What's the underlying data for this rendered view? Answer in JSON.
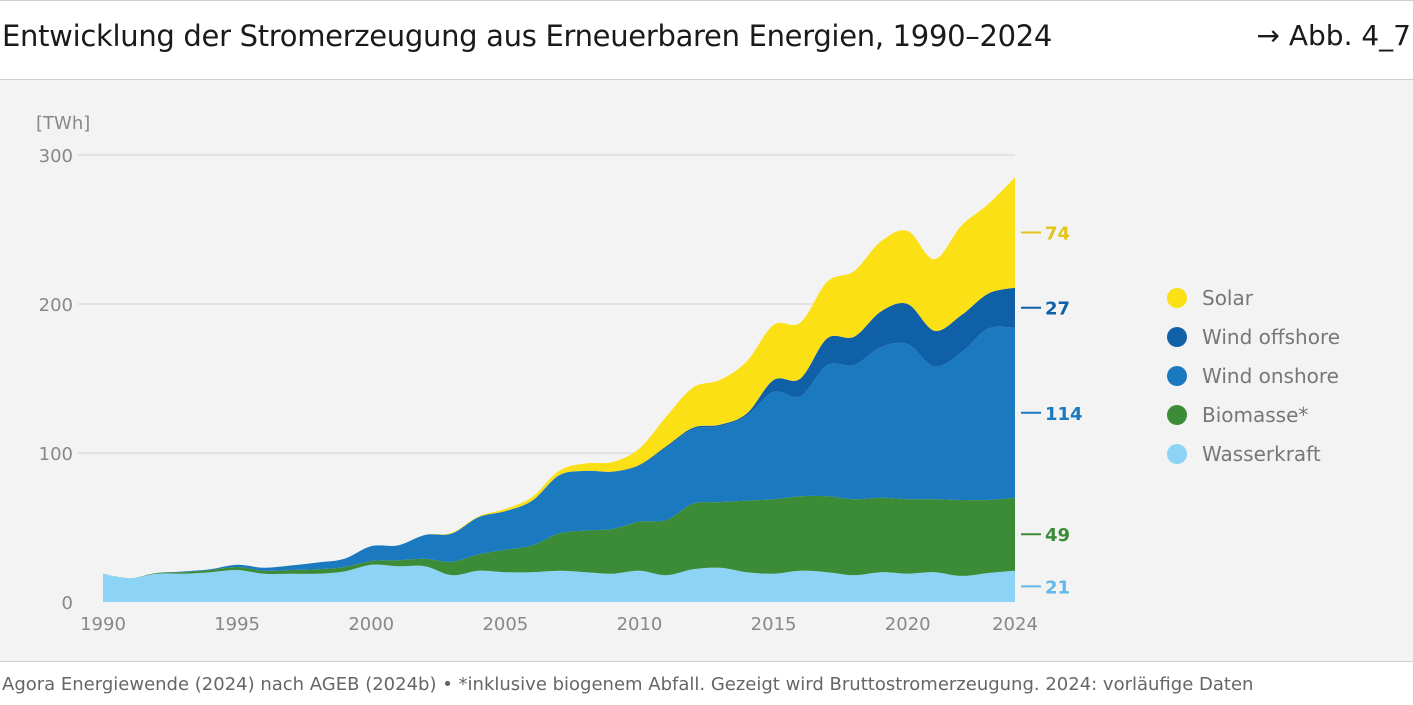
{
  "header": {
    "title": "Entwicklung der Stromerzeugung aus Erneuerbaren Energien, 1990–2024",
    "figure_ref": "→ Abb. 4_7"
  },
  "footer": {
    "source": "Agora Energiewende (2024) nach AGEB (2024b) • *inklusive biogenem Abfall. Gezeigt wird Bruttostromerzeugung. 2024: vorläufige Daten"
  },
  "chart_data": {
    "type": "area",
    "stacked": true,
    "unit_label": "[TWh]",
    "ylim": [
      0,
      300
    ],
    "yticks": [
      0,
      100,
      200,
      300
    ],
    "xlim": [
      1990,
      2024
    ],
    "xticks": [
      1990,
      1995,
      2000,
      2005,
      2010,
      2015,
      2020,
      2024
    ],
    "x": [
      1990,
      1991,
      1992,
      1993,
      1994,
      1995,
      1996,
      1997,
      1998,
      1999,
      2000,
      2001,
      2002,
      2003,
      2004,
      2005,
      2006,
      2007,
      2008,
      2009,
      2010,
      2011,
      2012,
      2013,
      2014,
      2015,
      2016,
      2017,
      2018,
      2019,
      2020,
      2021,
      2022,
      2023,
      2024
    ],
    "series": [
      {
        "name": "Wasserkraft",
        "color": "#8dd3f5",
        "end_label": "21",
        "values": [
          19,
          16,
          19,
          19,
          20,
          21.5,
          19,
          19,
          19,
          20.5,
          25,
          24,
          24,
          18,
          21,
          20,
          20,
          21,
          20,
          19,
          21,
          18,
          22,
          23,
          20,
          19,
          21,
          20,
          18,
          20,
          19,
          20,
          17.5,
          19.5,
          21
        ]
      },
      {
        "name": "Biomasse*",
        "color": "#3c8c37",
        "end_label": "49",
        "values": [
          0,
          0,
          0.5,
          1,
          1.5,
          2,
          2,
          2.5,
          3,
          3,
          2.5,
          4,
          5,
          9,
          11,
          15,
          18,
          25,
          28,
          30,
          33,
          37,
          44,
          44,
          48,
          50,
          50,
          51,
          51,
          50,
          50,
          49,
          51,
          49,
          49
        ]
      },
      {
        "name": "Wind onshore",
        "color": "#1b79c0",
        "end_label": "114",
        "values": [
          0,
          0,
          0,
          0.5,
          0.5,
          1.5,
          2,
          3,
          4.5,
          5.5,
          10,
          10,
          16,
          19,
          25,
          26,
          30,
          39,
          40,
          38.5,
          37.5,
          48.5,
          50,
          51,
          57,
          72,
          67,
          88,
          90,
          101,
          104,
          89,
          99,
          115,
          114
        ]
      },
      {
        "name": "Wind offshore",
        "color": "#1060a8",
        "end_label": "27",
        "values": [
          0,
          0,
          0,
          0,
          0,
          0,
          0,
          0,
          0,
          0,
          0,
          0,
          0,
          0,
          0,
          0,
          0,
          0,
          0,
          0,
          0.5,
          1,
          1,
          1,
          1.5,
          8,
          12,
          18,
          19,
          24,
          27,
          24,
          25,
          23.5,
          27
        ]
      },
      {
        "name": "Solar",
        "color": "#fbe016",
        "end_label": "74",
        "values": [
          0,
          0,
          0,
          0,
          0,
          0,
          0,
          0,
          0,
          0,
          0,
          0,
          0,
          0.5,
          0.5,
          1.5,
          2.5,
          3,
          5,
          6.5,
          11,
          20,
          27,
          30,
          35,
          37,
          37.5,
          38,
          44,
          47,
          49,
          48,
          60,
          60,
          74
        ]
      }
    ],
    "legend_order": [
      "Solar",
      "Wind offshore",
      "Wind onshore",
      "Biomasse*",
      "Wasserkraft"
    ],
    "legend_position": "right",
    "grid": true
  }
}
